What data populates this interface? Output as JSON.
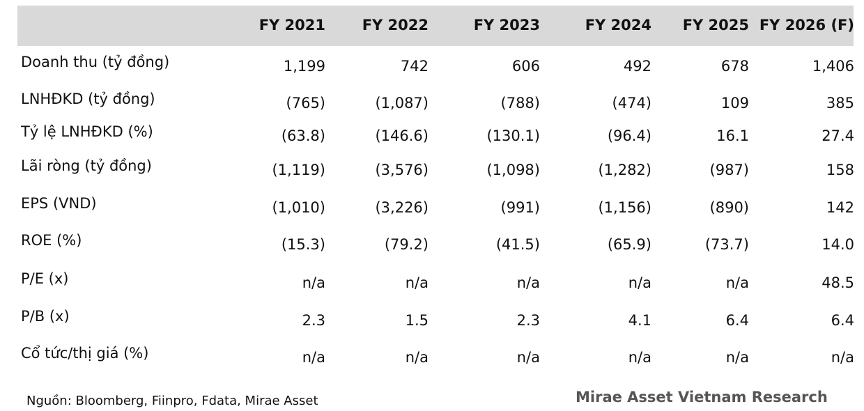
{
  "table": {
    "header": [
      "FY 2021",
      "FY 2022",
      "FY 2023",
      "FY 2024",
      "FY 2025",
      "FY 2026 (F)"
    ],
    "rows": [
      [
        "Doanh thu (tỷ đồng)",
        "1,199",
        "742",
        "606",
        "492",
        "678",
        "1,406"
      ],
      [
        "LNHĐKD (tỷ đồng)",
        "(765)",
        "(1,087)",
        "(788)",
        "(474)",
        "109",
        "385"
      ],
      [
        "Tỷ lệ LNHĐKD (%)",
        "(63.8)",
        "(146.6)",
        "(130.1)",
        "(96.4)",
        "16.1",
        "27.4"
      ],
      [
        "Lãi ròng (tỷ đồng)",
        "(1,119)",
        "(3,576)",
        "(1,098)",
        "(1,282)",
        "(987)",
        "158"
      ],
      [
        "EPS (VND)",
        "(1,010)",
        "(3,226)",
        "(991)",
        "(1,156)",
        "(890)",
        "142"
      ],
      [
        "ROE (%)",
        "(15.3)",
        "(79.2)",
        "(41.5)",
        "(65.9)",
        "(73.7)",
        "14.0"
      ],
      [
        "P/E (x)",
        "n/a",
        "n/a",
        "n/a",
        "n/a",
        "n/a",
        "48.5"
      ],
      [
        "P/B (x)",
        "2.3",
        "1.5",
        "2.3",
        "4.1",
        "6.4",
        "6.4"
      ],
      [
        "Cổ tức/thị giá (%)",
        "n/a",
        "n/a",
        "n/a",
        "n/a",
        "n/a",
        "n/a"
      ]
    ]
  },
  "footer": {
    "source": "Nguồn: Bloomberg, Fiinpro, Fdata, Mirae Asset",
    "brand": "Mirae Asset Vietnam Research"
  }
}
